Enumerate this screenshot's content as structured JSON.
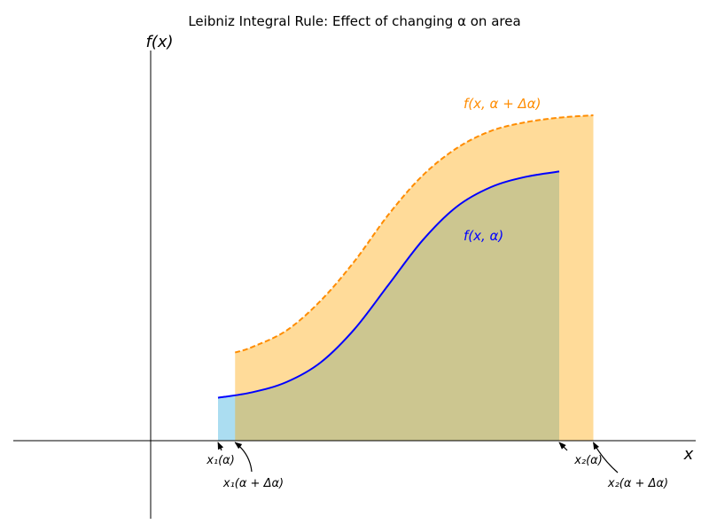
{
  "chart_data": {
    "type": "line",
    "title": "Leibniz Integral Rule: Effect of changing α on area",
    "xlabel": "x",
    "ylabel": "f(x)",
    "xlim": [
      -2,
      8
    ],
    "ylim": [
      -1,
      5
    ],
    "grid": false,
    "series": [
      {
        "name": "f(x, α)",
        "color": "#0000ff",
        "style": "solid",
        "fill_color": "#87ceeb",
        "x": [
          1,
          1.5,
          2,
          2.5,
          3,
          3.5,
          4,
          4.5,
          5,
          5.5,
          6
        ],
        "y": [
          0.55,
          0.62,
          0.75,
          1.0,
          1.43,
          2.0,
          2.57,
          3.0,
          3.25,
          3.38,
          3.45
        ]
      },
      {
        "name": "f(x, α + Δα)",
        "color": "#ff8c00",
        "style": "dashed",
        "fill_color": "#ffa500",
        "x": [
          1.25,
          1.5,
          2,
          2.5,
          3,
          3.5,
          4,
          4.5,
          5,
          5.5,
          6,
          6.5
        ],
        "y": [
          1.13,
          1.2,
          1.41,
          1.79,
          2.3,
          2.9,
          3.4,
          3.75,
          3.97,
          4.08,
          4.14,
          4.17
        ]
      }
    ],
    "annotations": [
      {
        "text": "x₁(α)",
        "x": 1.0
      },
      {
        "text": "x₁(α + Δα)",
        "x": 1.25
      },
      {
        "text": "x₂(α)",
        "x": 6.0
      },
      {
        "text": "x₂(α + Δα)",
        "x": 6.5
      }
    ]
  }
}
